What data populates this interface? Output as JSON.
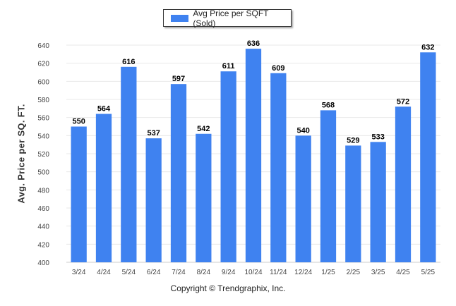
{
  "legend": {
    "label": "Avg Price per SQFT (Sold)"
  },
  "copyright": "Copyright © Trendgraphix, Inc.",
  "colors": {
    "bar": "#3f82f0",
    "grid": "#e8e8e8",
    "axis_text": "#444444"
  },
  "chart_data": {
    "type": "bar",
    "categories": [
      "3/24",
      "4/24",
      "5/24",
      "6/24",
      "7/24",
      "8/24",
      "9/24",
      "10/24",
      "11/24",
      "12/24",
      "1/25",
      "2/25",
      "3/25",
      "4/25",
      "5/25"
    ],
    "series": [
      {
        "name": "Avg Price per SQFT (Sold)",
        "values": [
          550,
          564,
          616,
          537,
          597,
          542,
          611,
          636,
          609,
          540,
          568,
          529,
          533,
          572,
          632
        ]
      }
    ],
    "ylabel": "Avg. Price per SQ. FT.",
    "xlabel": "",
    "ylim": [
      400,
      640
    ],
    "yticks": [
      400,
      420,
      440,
      460,
      480,
      500,
      520,
      540,
      560,
      580,
      600,
      620,
      640
    ],
    "grid": true,
    "data_labels": true,
    "legend_position": "top-center"
  }
}
